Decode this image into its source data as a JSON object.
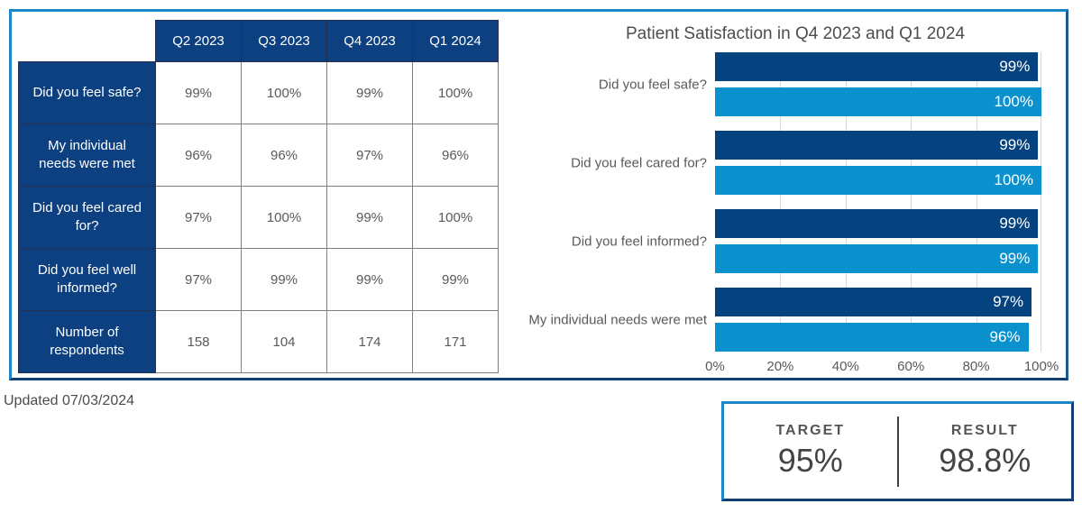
{
  "chart_data": [
    {
      "type": "table",
      "column_headers": [
        "Q2 2023",
        "Q3 2023",
        "Q4 2023",
        "Q1 2024"
      ],
      "rows": [
        {
          "label": "Did you feel safe?",
          "values": [
            "99%",
            "100%",
            "99%",
            "100%"
          ]
        },
        {
          "label": "My individual needs were met",
          "values": [
            "96%",
            "96%",
            "97%",
            "96%"
          ]
        },
        {
          "label": "Did you feel cared for?",
          "values": [
            "97%",
            "100%",
            "99%",
            "100%"
          ]
        },
        {
          "label": "Did you feel well informed?",
          "values": [
            "97%",
            "99%",
            "99%",
            "99%"
          ]
        },
        {
          "label": "Number of respondents",
          "values": [
            "158",
            "104",
            "174",
            "171"
          ]
        }
      ]
    },
    {
      "type": "bar",
      "orientation": "horizontal",
      "title": "Patient Satisfaction in Q4 2023 and Q1 2024",
      "categories": [
        "Did you feel safe?",
        "Did you feel cared for?",
        "Did you feel informed?",
        "My individual needs were met"
      ],
      "series": [
        {
          "name": "Q4 2023",
          "color": "#04437f",
          "values": [
            99,
            99,
            99,
            97
          ]
        },
        {
          "name": "Q1 2024",
          "color": "#0a91ce",
          "values": [
            100,
            100,
            99,
            96
          ]
        }
      ],
      "x_ticks": [
        "0%",
        "20%",
        "40%",
        "60%",
        "80%",
        "100%"
      ],
      "xlim": [
        0,
        100
      ],
      "grid": true,
      "legend": "none",
      "bar_label_format": "{v}%"
    }
  ],
  "footer": {
    "updated_text": "Updated 07/03/2024"
  },
  "kpi": {
    "target_label": "TARGET",
    "target_value": "95%",
    "result_label": "RESULT",
    "result_value": "98.8%"
  },
  "colors": {
    "navy": "#0d4080",
    "bar_dark": "#04437f",
    "bar_light": "#0a91ce",
    "border_light": "#1d86c6",
    "border_dark": "#123f72",
    "text_gray": "#595959",
    "gridline": "#d9d9d9"
  }
}
